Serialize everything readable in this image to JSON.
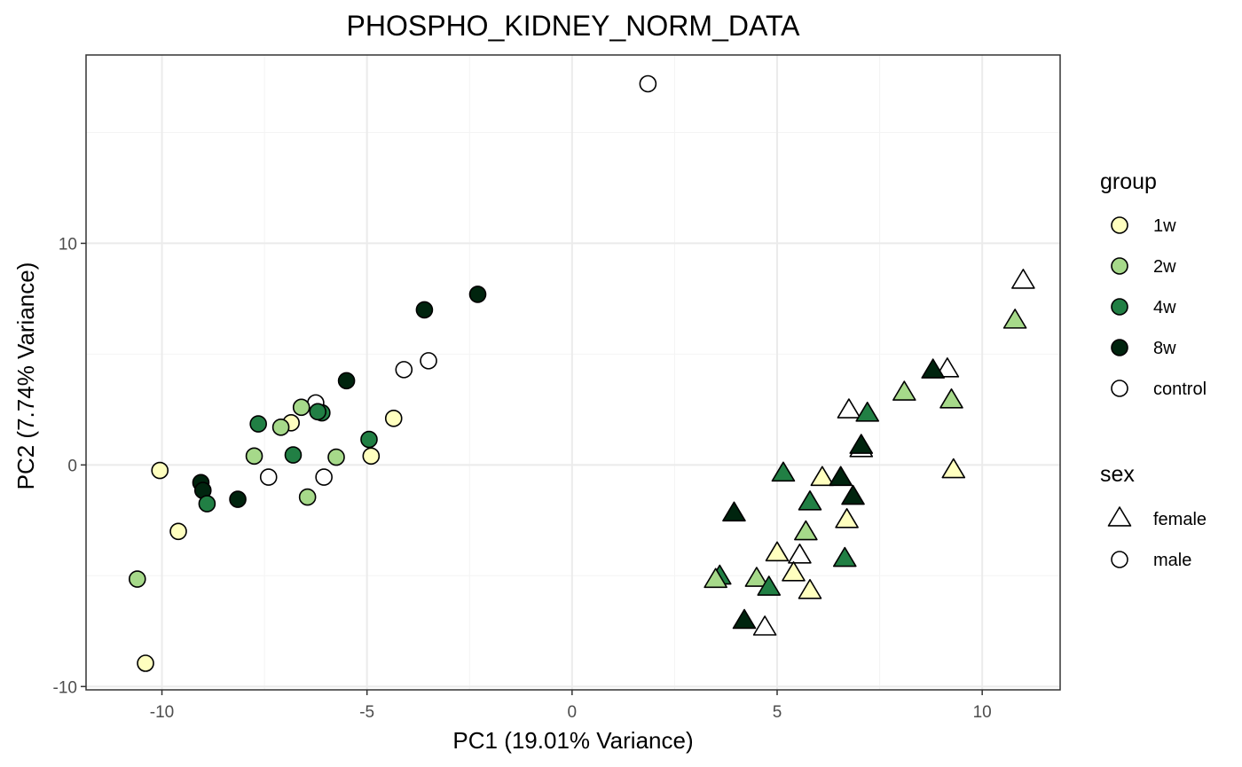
{
  "chart_data": {
    "type": "scatter",
    "title": "PHOSPHO_KIDNEY_NORM_DATA",
    "xlabel": "PC1 (19.01% Variance)",
    "ylabel": "PC2 (7.74% Variance)",
    "xlim": [
      -11.85,
      11.9
    ],
    "ylim": [
      -10.15,
      18.5
    ],
    "x_ticks": [
      -10,
      -5,
      0,
      5,
      10
    ],
    "x_tick_labels": [
      "-10",
      "-5",
      "0",
      "5",
      "10"
    ],
    "y_ticks": [
      -10,
      0,
      10
    ],
    "y_tick_labels": [
      "-10",
      "0",
      "10"
    ],
    "grid": true,
    "legend_position": "right",
    "group_legend": {
      "title": "group",
      "items": [
        {
          "label": "1w",
          "color": "#ffffbf"
        },
        {
          "label": "2w",
          "color": "#a6d98a"
        },
        {
          "label": "4w",
          "color": "#217f44"
        },
        {
          "label": "8w",
          "color": "#00240e"
        },
        {
          "label": "control",
          "color": "#ffffff"
        }
      ]
    },
    "shape_legend": {
      "title": "sex",
      "items": [
        {
          "label": "female",
          "shape": "triangle"
        },
        {
          "label": "male",
          "shape": "circle"
        }
      ]
    },
    "points": [
      {
        "x": 1.85,
        "y": 17.2,
        "group": "control",
        "sex": "male"
      },
      {
        "x": -2.3,
        "y": 7.7,
        "group": "8w",
        "sex": "male"
      },
      {
        "x": -3.6,
        "y": 7.0,
        "group": "8w",
        "sex": "male"
      },
      {
        "x": -3.5,
        "y": 4.7,
        "group": "control",
        "sex": "male"
      },
      {
        "x": -4.1,
        "y": 4.3,
        "group": "control",
        "sex": "male"
      },
      {
        "x": -5.5,
        "y": 3.8,
        "group": "8w",
        "sex": "male"
      },
      {
        "x": -4.35,
        "y": 2.1,
        "group": "1w",
        "sex": "male"
      },
      {
        "x": -6.25,
        "y": 2.8,
        "group": "control",
        "sex": "male"
      },
      {
        "x": -6.6,
        "y": 2.6,
        "group": "2w",
        "sex": "male"
      },
      {
        "x": -6.1,
        "y": 2.35,
        "group": "4w",
        "sex": "male"
      },
      {
        "x": -6.2,
        "y": 2.4,
        "group": "4w",
        "sex": "male"
      },
      {
        "x": -7.65,
        "y": 1.85,
        "group": "4w",
        "sex": "male"
      },
      {
        "x": -6.85,
        "y": 1.9,
        "group": "1w",
        "sex": "male"
      },
      {
        "x": -7.1,
        "y": 1.7,
        "group": "2w",
        "sex": "male"
      },
      {
        "x": -4.95,
        "y": 1.15,
        "group": "4w",
        "sex": "male"
      },
      {
        "x": -4.9,
        "y": 0.4,
        "group": "1w",
        "sex": "male"
      },
      {
        "x": -7.75,
        "y": 0.4,
        "group": "2w",
        "sex": "male"
      },
      {
        "x": -6.8,
        "y": 0.45,
        "group": "4w",
        "sex": "male"
      },
      {
        "x": -5.75,
        "y": 0.35,
        "group": "2w",
        "sex": "male"
      },
      {
        "x": -7.4,
        "y": -0.55,
        "group": "control",
        "sex": "male"
      },
      {
        "x": -6.05,
        "y": -0.55,
        "group": "control",
        "sex": "male"
      },
      {
        "x": -10.05,
        "y": -0.25,
        "group": "1w",
        "sex": "male"
      },
      {
        "x": -9.05,
        "y": -0.8,
        "group": "8w",
        "sex": "male"
      },
      {
        "x": -9.0,
        "y": -1.15,
        "group": "8w",
        "sex": "male"
      },
      {
        "x": -6.45,
        "y": -1.45,
        "group": "2w",
        "sex": "male"
      },
      {
        "x": -8.15,
        "y": -1.55,
        "group": "8w",
        "sex": "male"
      },
      {
        "x": -8.9,
        "y": -1.75,
        "group": "4w",
        "sex": "male"
      },
      {
        "x": -9.6,
        "y": -3.0,
        "group": "1w",
        "sex": "male"
      },
      {
        "x": -10.6,
        "y": -5.15,
        "group": "2w",
        "sex": "male"
      },
      {
        "x": -10.4,
        "y": -8.95,
        "group": "1w",
        "sex": "male"
      },
      {
        "x": 11.0,
        "y": 8.3,
        "group": "control",
        "sex": "female"
      },
      {
        "x": 10.8,
        "y": 6.5,
        "group": "2w",
        "sex": "female"
      },
      {
        "x": 9.15,
        "y": 4.3,
        "group": "control",
        "sex": "female"
      },
      {
        "x": 8.8,
        "y": 4.25,
        "group": "8w",
        "sex": "female"
      },
      {
        "x": 8.1,
        "y": 3.25,
        "group": "2w",
        "sex": "female"
      },
      {
        "x": 9.25,
        "y": 2.9,
        "group": "2w",
        "sex": "female"
      },
      {
        "x": 6.75,
        "y": 2.45,
        "group": "control",
        "sex": "female"
      },
      {
        "x": 7.2,
        "y": 2.3,
        "group": "4w",
        "sex": "female"
      },
      {
        "x": 7.05,
        "y": 0.7,
        "group": "control",
        "sex": "female"
      },
      {
        "x": 7.05,
        "y": 0.85,
        "group": "8w",
        "sex": "female"
      },
      {
        "x": 9.3,
        "y": -0.25,
        "group": "1w",
        "sex": "female"
      },
      {
        "x": 5.15,
        "y": -0.4,
        "group": "4w",
        "sex": "female"
      },
      {
        "x": 6.1,
        "y": -0.6,
        "group": "1w",
        "sex": "female"
      },
      {
        "x": 6.55,
        "y": -0.6,
        "group": "8w",
        "sex": "female"
      },
      {
        "x": 6.85,
        "y": -1.45,
        "group": "8w",
        "sex": "female"
      },
      {
        "x": 5.8,
        "y": -1.7,
        "group": "4w",
        "sex": "female"
      },
      {
        "x": 3.95,
        "y": -2.2,
        "group": "8w",
        "sex": "female"
      },
      {
        "x": 6.7,
        "y": -2.5,
        "group": "1w",
        "sex": "female"
      },
      {
        "x": 5.7,
        "y": -3.05,
        "group": "2w",
        "sex": "female"
      },
      {
        "x": 5.0,
        "y": -4.0,
        "group": "1w",
        "sex": "female"
      },
      {
        "x": 5.55,
        "y": -4.1,
        "group": "control",
        "sex": "female"
      },
      {
        "x": 6.65,
        "y": -4.25,
        "group": "4w",
        "sex": "female"
      },
      {
        "x": 5.4,
        "y": -4.9,
        "group": "1w",
        "sex": "female"
      },
      {
        "x": 3.6,
        "y": -5.05,
        "group": "4w",
        "sex": "female"
      },
      {
        "x": 3.5,
        "y": -5.2,
        "group": "2w",
        "sex": "female"
      },
      {
        "x": 4.5,
        "y": -5.15,
        "group": "2w",
        "sex": "female"
      },
      {
        "x": 4.8,
        "y": -5.55,
        "group": "4w",
        "sex": "female"
      },
      {
        "x": 5.8,
        "y": -5.7,
        "group": "1w",
        "sex": "female"
      },
      {
        "x": 4.2,
        "y": -7.05,
        "group": "8w",
        "sex": "female"
      },
      {
        "x": 4.7,
        "y": -7.35,
        "group": "control",
        "sex": "female"
      }
    ]
  }
}
